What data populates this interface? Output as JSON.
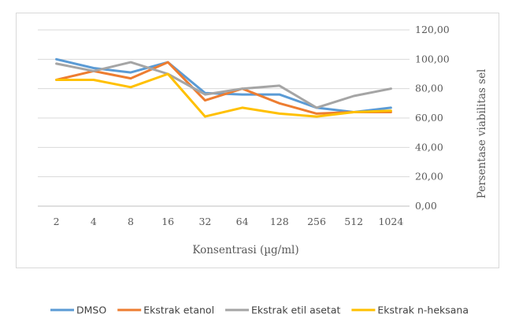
{
  "chart_data": {
    "type": "line",
    "categories": [
      "2",
      "4",
      "8",
      "16",
      "32",
      "64",
      "128",
      "256",
      "512",
      "1024"
    ],
    "xlabel": "Konsentrasi (µg/ml)",
    "ylabel": "Persentase viabilitas sel",
    "ylim": [
      0,
      120
    ],
    "yticks": [
      "0,00",
      "20,00",
      "40,00",
      "60,00",
      "80,00",
      "100,00",
      "120,00"
    ],
    "y_axis_side": "right",
    "grid": true,
    "legend_position": "bottom",
    "series": [
      {
        "name": "DMSO",
        "color": "#5b9bd5",
        "values": [
          100,
          94,
          91,
          98,
          77,
          76,
          76,
          67,
          64,
          67
        ]
      },
      {
        "name": "Ekstrak etanol",
        "color": "#ed7d31",
        "values": [
          86,
          92,
          87,
          98,
          72,
          80,
          70,
          63,
          64,
          64
        ]
      },
      {
        "name": "Ekstrak etil asetat",
        "color": "#a5a5a5",
        "values": [
          97,
          92,
          98,
          90,
          76,
          80,
          82,
          67,
          75,
          80
        ]
      },
      {
        "name": "Ekstrak n-heksana",
        "color": "#ffc000",
        "values": [
          86,
          86,
          81,
          90,
          61,
          67,
          63,
          61,
          64,
          65
        ]
      }
    ]
  }
}
